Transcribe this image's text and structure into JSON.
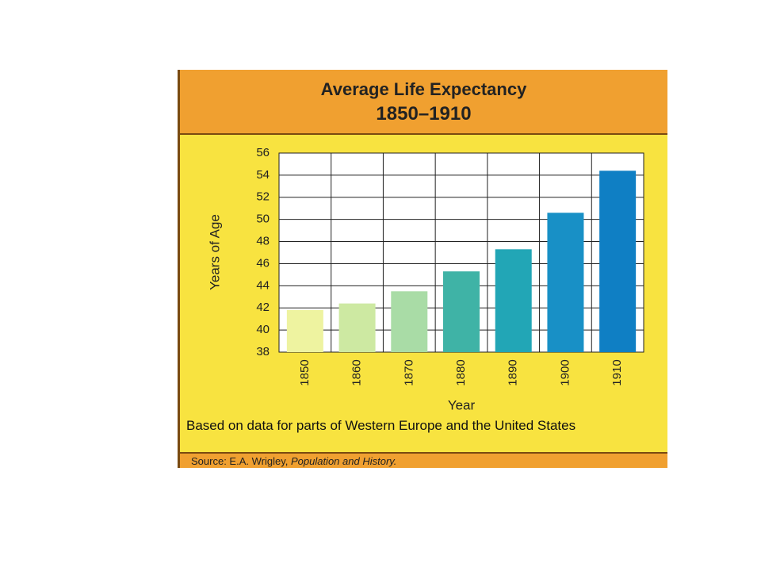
{
  "chart_data": {
    "type": "bar",
    "title": "Average Life Expectancy",
    "subtitle": "1850–1910",
    "y_label": "Years of Age",
    "x_label": "Year",
    "categories": [
      "1850",
      "1860",
      "1870",
      "1880",
      "1890",
      "1900",
      "1910"
    ],
    "values": [
      41.8,
      42.4,
      43.5,
      45.3,
      47.3,
      50.6,
      54.4
    ],
    "colors": [
      "#eef3a0",
      "#cde9a2",
      "#a9dca6",
      "#3fb3a6",
      "#22a6b6",
      "#1890c6",
      "#0f7fc4"
    ],
    "ylim": [
      38,
      56
    ],
    "yticks": [
      38,
      40,
      42,
      44,
      46,
      48,
      50,
      52,
      54,
      56
    ],
    "grid": true,
    "note": "Based on data for parts of Western Europe and the United States",
    "source": {
      "label": "Source: E.A. Wrigley,",
      "work": "Population and History."
    }
  }
}
